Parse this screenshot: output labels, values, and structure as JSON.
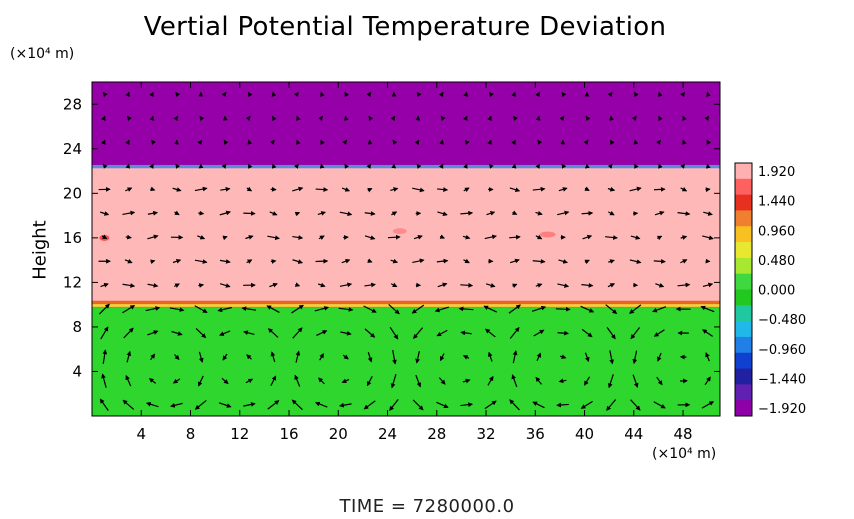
{
  "chart_data": {
    "type": "heatmap",
    "title": "Vertial Potential Temperature Deviation",
    "ylabel": "Height",
    "x_unit": "(×10⁴ m)",
    "y_unit": "(×10⁴ m)",
    "x_ticks": [
      4,
      8,
      12,
      16,
      20,
      24,
      28,
      32,
      36,
      40,
      44,
      48
    ],
    "y_ticks": [
      4,
      8,
      12,
      16,
      20,
      24,
      28
    ],
    "xlim": [
      0,
      51
    ],
    "ylim": [
      0,
      30
    ],
    "layers": [
      {
        "y_from": 0,
        "y_to": 10,
        "value": 0.0,
        "color": "#2ed62e"
      },
      {
        "y_from": 10,
        "y_to": 22.5,
        "value": 1.92,
        "color": "#ffb8b8"
      },
      {
        "y_from": 22.5,
        "y_to": 30,
        "value": -1.92,
        "color": "#9600a8"
      }
    ],
    "colorbar": {
      "labels": [
        "1.920",
        "1.440",
        "0.960",
        "0.480",
        "0.000",
        "−0.480",
        "−0.960",
        "−1.440",
        "−1.920"
      ],
      "min": -1.92,
      "max": 1.92
    },
    "vector_field": true,
    "time_label": "TIME  =  7280000.0"
  }
}
